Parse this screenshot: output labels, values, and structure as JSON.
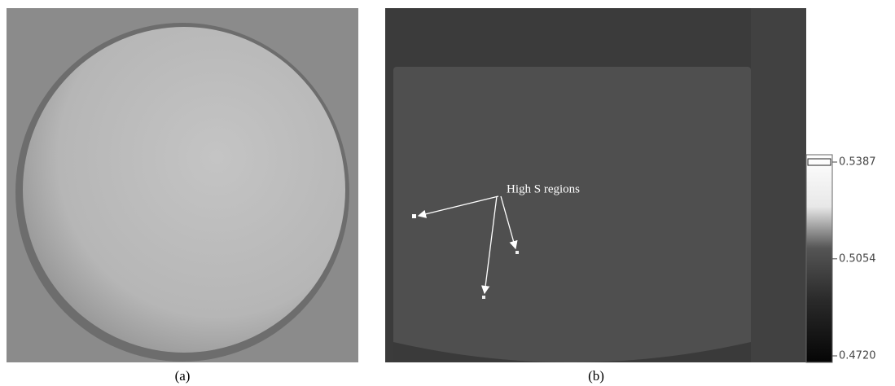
{
  "panels": [
    {
      "caption": "(a)"
    },
    {
      "caption": "(b)",
      "annotation": "High S regions",
      "colorbar": {
        "ticks": [
          0.5387,
          0.5054,
          {
            "value": 0.472,
            "label": "0.4720"
          }
        ]
      }
    }
  ]
}
